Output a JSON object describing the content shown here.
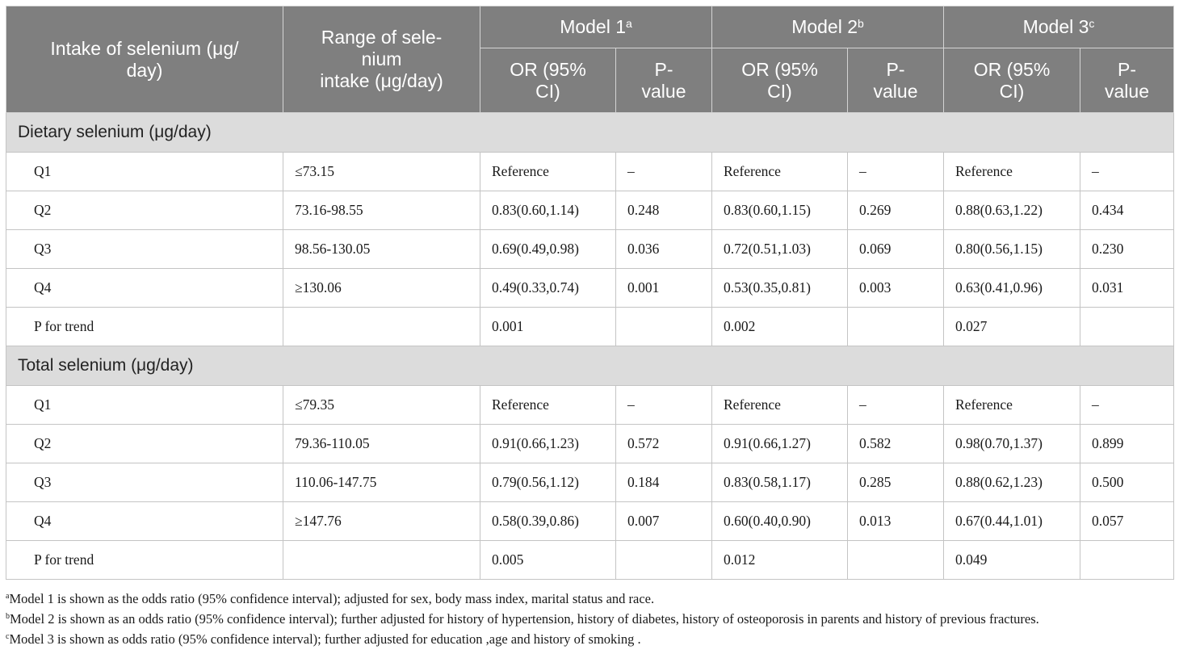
{
  "header": {
    "col_intake": "Intake of selenium (μg/\nday)",
    "col_range": "Range of sele-\nnium\nintake (μg/day)",
    "models": [
      {
        "name": "Model 1",
        "sup": "a"
      },
      {
        "name": "Model 2",
        "sup": "b"
      },
      {
        "name": "Model 3",
        "sup": "c"
      }
    ],
    "or_label": "OR (95%\nCI)",
    "p_label": "P-\nvalue"
  },
  "sections": [
    {
      "title": "Dietary selenium (μg/day)",
      "rows": [
        {
          "q": "Q1",
          "range": "≤73.15",
          "m1_or": "Reference",
          "m1_p": "–",
          "m2_or": "Reference",
          "m2_p": "–",
          "m3_or": "Reference",
          "m3_p": "–"
        },
        {
          "q": "Q2",
          "range": "73.16-98.55",
          "m1_or": "0.83(0.60,1.14)",
          "m1_p": "0.248",
          "m2_or": "0.83(0.60,1.15)",
          "m2_p": "0.269",
          "m3_or": "0.88(0.63,1.22)",
          "m3_p": "0.434"
        },
        {
          "q": "Q3",
          "range": "98.56-130.05",
          "m1_or": "0.69(0.49,0.98)",
          "m1_p": "0.036",
          "m2_or": "0.72(0.51,1.03)",
          "m2_p": "0.069",
          "m3_or": "0.80(0.56,1.15)",
          "m3_p": "0.230"
        },
        {
          "q": "Q4",
          "range": "≥130.06",
          "m1_or": "0.49(0.33,0.74)",
          "m1_p": "0.001",
          "m2_or": "0.53(0.35,0.81)",
          "m2_p": "0.003",
          "m3_or": "0.63(0.41,0.96)",
          "m3_p": "0.031"
        },
        {
          "q": "P for trend",
          "range": "",
          "m1_or": "0.001",
          "m1_p": "",
          "m2_or": "0.002",
          "m2_p": "",
          "m3_or": "0.027",
          "m3_p": ""
        }
      ]
    },
    {
      "title": "Total selenium (μg/day)",
      "rows": [
        {
          "q": "Q1",
          "range": "≤79.35",
          "m1_or": "Reference",
          "m1_p": "–",
          "m2_or": "Reference",
          "m2_p": "–",
          "m3_or": "Reference",
          "m3_p": "–"
        },
        {
          "q": "Q2",
          "range": "79.36-110.05",
          "m1_or": "0.91(0.66,1.23)",
          "m1_p": "0.572",
          "m2_or": "0.91(0.66,1.27)",
          "m2_p": "0.582",
          "m3_or": "0.98(0.70,1.37)",
          "m3_p": "0.899"
        },
        {
          "q": "Q3",
          "range": "110.06-147.75",
          "m1_or": "0.79(0.56,1.12)",
          "m1_p": "0.184",
          "m2_or": "0.83(0.58,1.17)",
          "m2_p": "0.285",
          "m3_or": "0.88(0.62,1.23)",
          "m3_p": "0.500"
        },
        {
          "q": "Q4",
          "range": "≥147.76",
          "m1_or": "0.58(0.39,0.86)",
          "m1_p": "0.007",
          "m2_or": "0.60(0.40,0.90)",
          "m2_p": "0.013",
          "m3_or": "0.67(0.44,1.01)",
          "m3_p": "0.057"
        },
        {
          "q": "P for trend",
          "range": "",
          "m1_or": "0.005",
          "m1_p": "",
          "m2_or": "0.012",
          "m2_p": "",
          "m3_or": "0.049",
          "m3_p": ""
        }
      ]
    }
  ],
  "footnotes": [
    {
      "sup": "a",
      "text": "Model 1 is shown as the odds ratio (95% confidence interval); adjusted for sex, body mass index, marital status and race."
    },
    {
      "sup": "b",
      "text": "Model 2 is shown as an odds ratio (95% confidence interval); further adjusted for history of hypertension, history of diabetes, history of osteoporosis in parents and history of previous fractures."
    },
    {
      "sup": "c",
      "text": "Model 3 is shown as odds ratio (95% confidence interval); further adjusted for education ,age and history of smoking ."
    }
  ],
  "colors": {
    "header_bg": "#7f7f7f",
    "section_bg": "#dcdcdc",
    "border": "#c4c4c4"
  }
}
